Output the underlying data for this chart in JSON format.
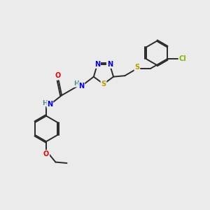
{
  "bg_color": "#ebebeb",
  "bond_color": "#2a2a2a",
  "atom_colors": {
    "N": "#0000ee",
    "S": "#b8a000",
    "O": "#ee0000",
    "Cl": "#7fba00",
    "H": "#4a9090"
  },
  "lw": 1.4
}
